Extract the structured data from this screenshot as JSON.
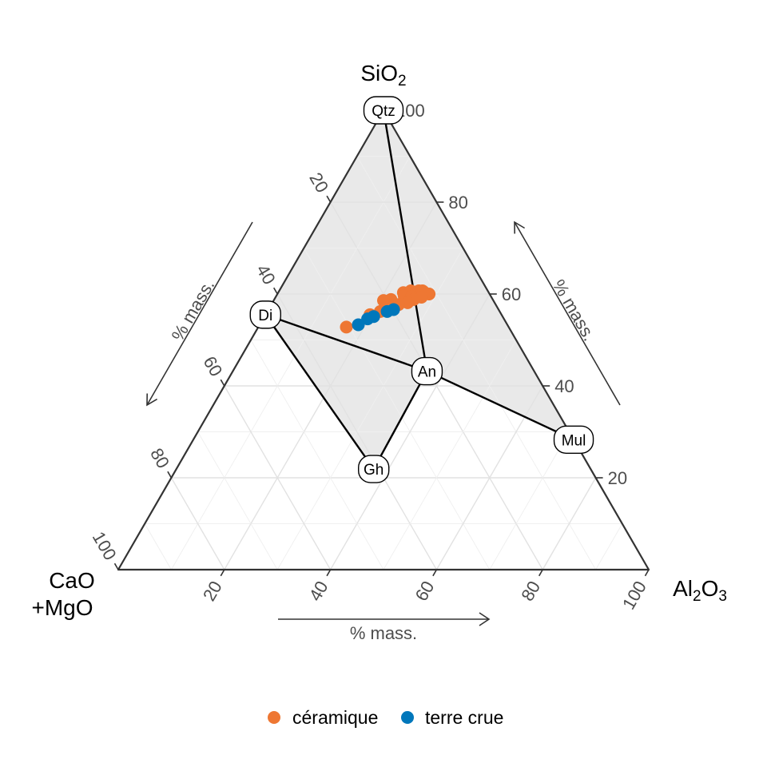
{
  "chart_data": {
    "type": "scatter",
    "subtype": "ternary",
    "axes": {
      "top": {
        "label": "SiO",
        "sub": "2"
      },
      "left": {
        "label_lines": [
          "CaO",
          "+MgO"
        ]
      },
      "right": {
        "label": "Al",
        "sub1": "2",
        "mid": "O",
        "sub2": "3"
      },
      "unit_label": "% mass.",
      "ticks": [
        20,
        40,
        60,
        80,
        100
      ],
      "range": [
        0,
        100
      ]
    },
    "grid": true,
    "colors": {
      "ceramique": "#EE7733",
      "terre_crue": "#0077BB",
      "field": "#E9E9E9",
      "frame": "#333333"
    },
    "minerals": [
      {
        "name": "Qtz",
        "SiO2": 100,
        "Al2O3": 0,
        "CaO_MgO": 0
      },
      {
        "name": "Di",
        "SiO2": 55.5,
        "Al2O3": 0,
        "CaO_MgO": 44.5
      },
      {
        "name": "An",
        "SiO2": 43.2,
        "Al2O3": 36.6,
        "CaO_MgO": 20.2
      },
      {
        "name": "Mul",
        "SiO2": 28.3,
        "Al2O3": 71.7,
        "CaO_MgO": 0
      },
      {
        "name": "Gh",
        "SiO2": 21.9,
        "Al2O3": 37.2,
        "CaO_MgO": 40.9
      }
    ],
    "tielines": [
      [
        "Qtz",
        "An"
      ],
      [
        "Di",
        "An"
      ],
      [
        "An",
        "Mul"
      ],
      [
        "Di",
        "Gh"
      ],
      [
        "Gh",
        "An"
      ]
    ],
    "field_polygon": [
      "Qtz",
      "Mul",
      "An",
      "Gh",
      "Di"
    ],
    "series": [
      {
        "name": "céramique",
        "points": [
          {
            "SiO2": 60.3,
            "Al2O3": 23.6
          },
          {
            "SiO2": 60.7,
            "Al2O3": 24.8
          },
          {
            "SiO2": 60.7,
            "Al2O3": 26.3
          },
          {
            "SiO2": 60.7,
            "Al2O3": 27.0
          },
          {
            "SiO2": 60.5,
            "Al2O3": 27.3
          },
          {
            "SiO2": 60.0,
            "Al2O3": 28.6
          },
          {
            "SiO2": 59.6,
            "Al2O3": 24.1
          },
          {
            "SiO2": 59.4,
            "Al2O3": 25.6
          },
          {
            "SiO2": 59.3,
            "Al2O3": 27.5
          },
          {
            "SiO2": 58.8,
            "Al2O3": 22.0
          },
          {
            "SiO2": 58.8,
            "Al2O3": 26.3
          },
          {
            "SiO2": 58.6,
            "Al2O3": 20.7
          },
          {
            "SiO2": 58.1,
            "Al2O3": 25.5
          },
          {
            "SiO2": 57.7,
            "Al2O3": 24.0
          },
          {
            "SiO2": 57.1,
            "Al2O3": 23.2
          },
          {
            "SiO2": 56.2,
            "Al2O3": 21.3
          },
          {
            "SiO2": 55.5,
            "Al2O3": 19.7
          },
          {
            "SiO2": 52.8,
            "Al2O3": 16.6
          }
        ]
      },
      {
        "name": "terre crue",
        "points": [
          {
            "SiO2": 56.6,
            "Al2O3": 23.6
          },
          {
            "SiO2": 56.2,
            "Al2O3": 22.6
          },
          {
            "SiO2": 55.1,
            "Al2O3": 20.6
          },
          {
            "SiO2": 54.6,
            "Al2O3": 19.7
          },
          {
            "SiO2": 53.3,
            "Al2O3": 18.6
          }
        ]
      }
    ]
  }
}
